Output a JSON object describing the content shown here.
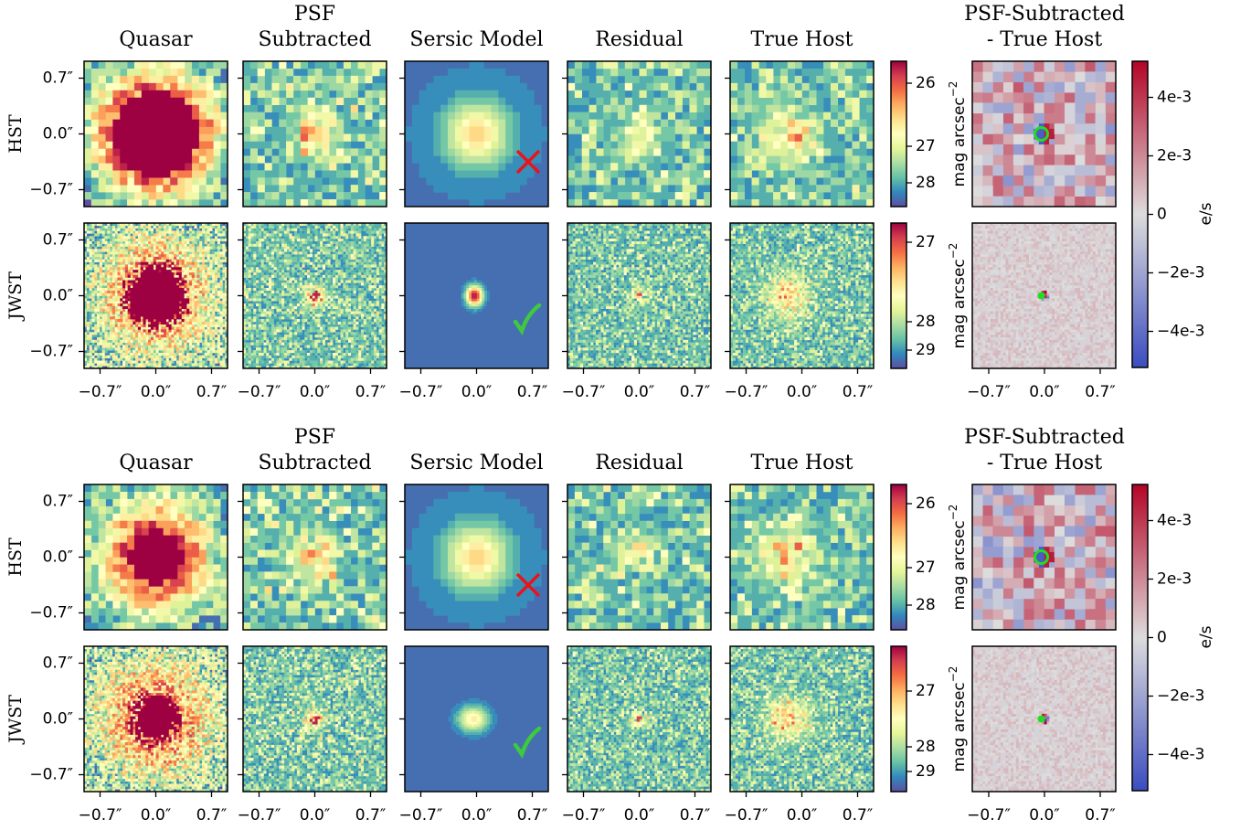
{
  "figures": [
    {
      "columns": [
        [
          "Quasar"
        ],
        [
          "PSF",
          "Subtracted"
        ],
        [
          "Sersic Model"
        ],
        [
          "Residual"
        ],
        [
          "True Host"
        ]
      ],
      "diff_title": [
        "PSF-Subtracted",
        "- True Host"
      ],
      "rows": [
        {
          "label": "HST",
          "mag_ticks": [
            "26",
            "27",
            "28"
          ]
        },
        {
          "label": "JWST",
          "mag_ticks": [
            "27",
            "28",
            "29"
          ]
        }
      ],
      "mag_label": {
        "text": "mag arcsec",
        "exponent": "−2"
      },
      "y_ticks": [
        "0.7″",
        "0.0″",
        "−0.7″"
      ],
      "x_ticks": [
        "−0.7″",
        "0.0″",
        "0.7″"
      ],
      "diff_ticks": [
        "4e-3",
        "2e-3",
        "0",
        "−2e-3",
        "−4e-3"
      ],
      "diff_unit": "e/s"
    },
    {
      "columns": [
        [
          "Quasar"
        ],
        [
          "PSF",
          "Subtracted"
        ],
        [
          "Sersic Model"
        ],
        [
          "Residual"
        ],
        [
          "True Host"
        ]
      ],
      "diff_title": [
        "PSF-Subtracted",
        "- True Host"
      ],
      "rows": [
        {
          "label": "HST",
          "mag_ticks": [
            "26",
            "27",
            "28"
          ]
        },
        {
          "label": "JWST",
          "mag_ticks": [
            "27",
            "28",
            "29"
          ]
        }
      ],
      "mag_label": {
        "text": "mag arcsec",
        "exponent": "−2"
      },
      "y_ticks": [
        "0.7″",
        "0.0″",
        "−0.7″"
      ],
      "x_ticks": [
        "−0.7″",
        "0.0″",
        "0.7″"
      ],
      "diff_ticks": [
        "4e-3",
        "2e-3",
        "0",
        "−2e-3",
        "−4e-3"
      ],
      "diff_unit": "e/s"
    }
  ]
}
